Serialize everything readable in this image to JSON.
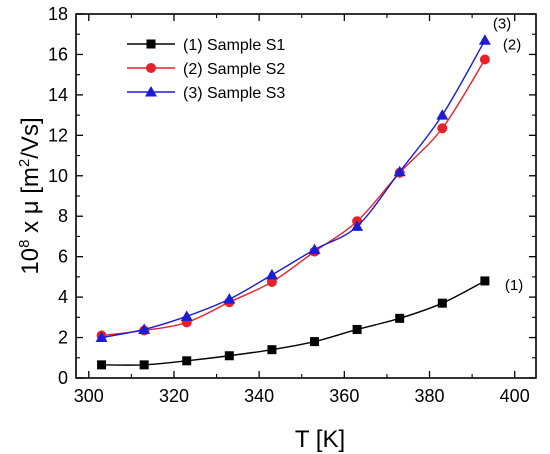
{
  "chart_data": {
    "type": "line",
    "xlabel": "T [K]",
    "ylabel": {
      "prefix": "10",
      "prefix_sup": "8",
      "mid": " x μ [m",
      "mid_sup": "2",
      "suffix": "/Vs]"
    },
    "xlim": [
      297,
      405
    ],
    "ylim": [
      0,
      18
    ],
    "xticks": [
      300,
      320,
      340,
      360,
      380,
      400
    ],
    "yticks": [
      0,
      2,
      4,
      6,
      8,
      10,
      12,
      14,
      16,
      18
    ],
    "grid": false,
    "legend_position": "top-left",
    "series": [
      {
        "name": "(1) Sample S1",
        "color": "#000000",
        "marker": "square",
        "x": [
          303,
          313,
          323,
          333,
          343,
          353,
          363,
          373,
          383,
          393
        ],
        "y": [
          0.65,
          0.65,
          0.85,
          1.1,
          1.4,
          1.8,
          2.4,
          2.95,
          3.7,
          4.8
        ],
        "end_label": "(1)"
      },
      {
        "name": "(2) Sample S2",
        "color": "#e8202a",
        "marker": "circle",
        "x": [
          303,
          313,
          323,
          333,
          343,
          353,
          363,
          373,
          383,
          393
        ],
        "y": [
          2.1,
          2.35,
          2.75,
          3.75,
          4.75,
          6.25,
          7.75,
          10.15,
          12.35,
          15.75
        ],
        "end_label": "(2)"
      },
      {
        "name": "(3) Sample S3",
        "color": "#1c1cd6",
        "marker": "triangle",
        "x": [
          303,
          313,
          323,
          333,
          343,
          353,
          363,
          373,
          383,
          393
        ],
        "y": [
          2.0,
          2.4,
          3.05,
          3.9,
          5.1,
          6.35,
          7.5,
          10.2,
          13.0,
          16.7
        ],
        "end_label": "(3)"
      }
    ]
  }
}
